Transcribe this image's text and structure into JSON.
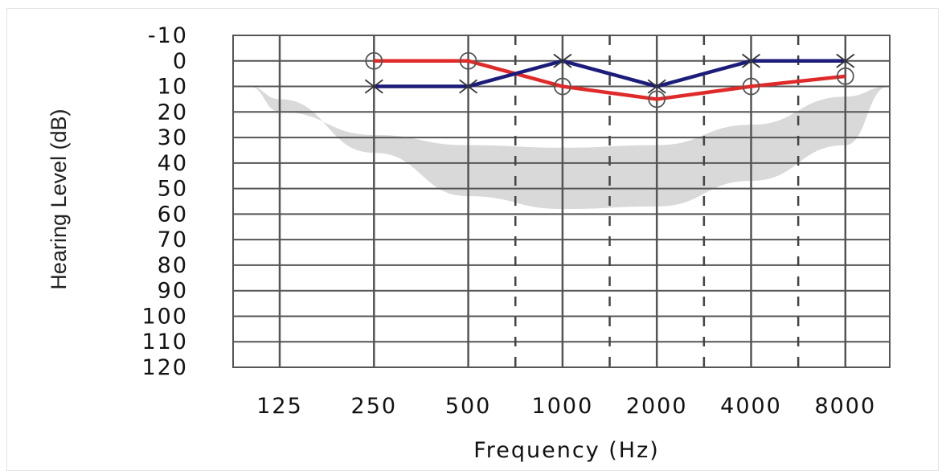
{
  "chart_data": {
    "type": "line",
    "xlabel": "Frequency (Hz)",
    "ylabel": "Hearing Level (dB)",
    "categories": [
      "125",
      "250",
      "500",
      "1000",
      "2000",
      "4000",
      "8000"
    ],
    "y_ticks": [
      "-10",
      "0",
      "10",
      "20",
      "30",
      "40",
      "50",
      "60",
      "70",
      "80",
      "90",
      "100",
      "110",
      "120"
    ],
    "ylim": [
      -10,
      120
    ],
    "y_inverted": true,
    "grid": true,
    "dashed_gridlines_between": [
      [
        "500",
        "1000"
      ],
      [
        "1000",
        "2000"
      ],
      [
        "2000",
        "4000"
      ],
      [
        "4000",
        "8000"
      ]
    ],
    "shaded_band": {
      "description_color": "#d9d9d9",
      "upper": [
        [
          100,
          10
        ],
        [
          125,
          20
        ],
        [
          250,
          29
        ],
        [
          500,
          33
        ],
        [
          1000,
          34
        ],
        [
          2000,
          33
        ],
        [
          4000,
          25
        ],
        [
          8000,
          14
        ],
        [
          11000,
          10
        ]
      ],
      "lower": [
        [
          100,
          10
        ],
        [
          125,
          15
        ],
        [
          250,
          36
        ],
        [
          500,
          53
        ],
        [
          1000,
          58
        ],
        [
          2000,
          57
        ],
        [
          4000,
          47
        ],
        [
          8000,
          33
        ],
        [
          11000,
          10
        ]
      ]
    },
    "series": [
      {
        "color": "#e02a2a",
        "marker": "circle",
        "points": [
          [
            250,
            0
          ],
          [
            500,
            0
          ],
          [
            1000,
            10
          ],
          [
            2000,
            15
          ],
          [
            4000,
            10
          ],
          [
            8000,
            6
          ]
        ]
      },
      {
        "color": "#1c1c7a",
        "marker": "x",
        "points": [
          [
            250,
            10
          ],
          [
            500,
            10
          ],
          [
            1000,
            0
          ],
          [
            2000,
            10
          ],
          [
            4000,
            0
          ],
          [
            8000,
            0
          ]
        ]
      }
    ]
  }
}
